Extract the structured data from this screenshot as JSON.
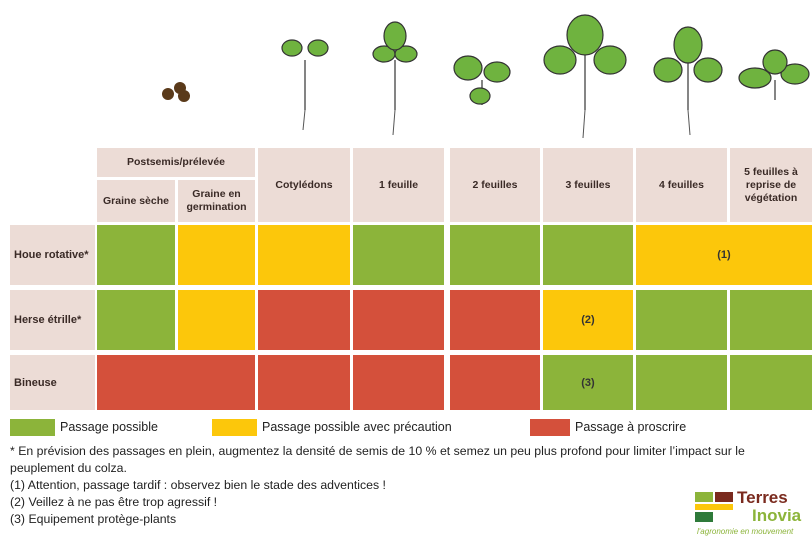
{
  "header": {
    "group": "Postsemis/prélevée",
    "columns": [
      "Graine sèche",
      "Graine en germination",
      "Cotylédons",
      "1 feuille",
      "2 feuilles",
      "3 feuilles",
      "4 feuilles",
      "5 feuilles à reprise de végétation"
    ]
  },
  "rows": [
    {
      "label": "Houe rotative*",
      "cells": [
        {
          "color": "#8cb43a"
        },
        {
          "color": "#fcc70b"
        },
        {
          "color": "#fcc70b"
        },
        {
          "color": "#8cb43a"
        },
        {
          "color": "#8cb43a"
        },
        {
          "color": "#8cb43a"
        },
        {
          "color": "#fcc70b",
          "span": 2,
          "note": "(1)"
        }
      ]
    },
    {
      "label": "Herse étrille*",
      "cells": [
        {
          "color": "#8cb43a"
        },
        {
          "color": "#fcc70b"
        },
        {
          "color": "#d4503b"
        },
        {
          "color": "#d4503b"
        },
        {
          "color": "#d4503b"
        },
        {
          "color": "#fcc70b",
          "note": "(2)"
        },
        {
          "color": "#8cb43a"
        },
        {
          "color": "#8cb43a"
        }
      ]
    },
    {
      "label": "Bineuse",
      "cells": [
        {
          "color": "#d4503b",
          "span": 2
        },
        {
          "color": "#d4503b"
        },
        {
          "color": "#d4503b"
        },
        {
          "color": "#d4503b"
        },
        {
          "color": "#8cb43a",
          "note": "(3)"
        },
        {
          "color": "#8cb43a"
        },
        {
          "color": "#8cb43a"
        }
      ]
    }
  ],
  "legend": [
    {
      "label": "Passage possible",
      "color": "#8cb43a"
    },
    {
      "label": "Passage possible avec précaution",
      "color": "#fcc70b"
    },
    {
      "label": "Passage à proscrire",
      "color": "#d4503b"
    }
  ],
  "footnotes": [
    "* En prévision des passages en plein, augmentez la densité de semis de 10 % et semez un peu plus profond pour limiter l’impact sur le peuplement du colza.",
    "(1) Attention, passage tardif : observez bien le stade des adventices !",
    "(2) Veillez à ne pas être trop agressif !",
    "(3) Equipement protège-plants"
  ],
  "logo": {
    "name1": "Terres",
    "name2": "Inovia",
    "tagline": "l'agronomie en mouvement"
  }
}
